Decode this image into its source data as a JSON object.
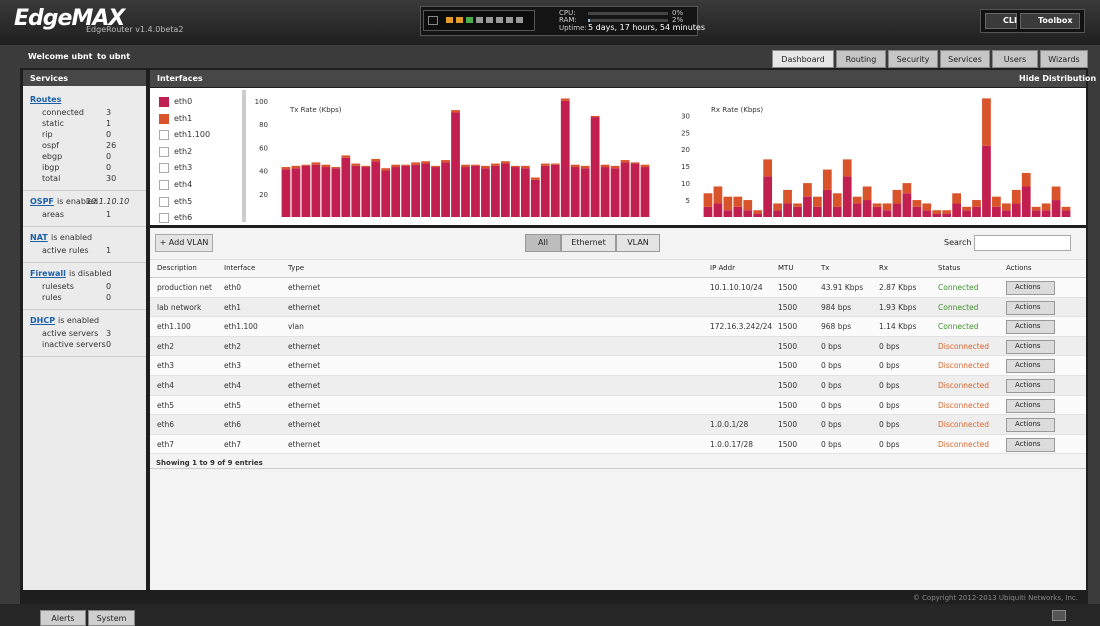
{
  "header": {
    "logo": "EdgeMAX",
    "version": "EdgeRouter v1.4.0beta2",
    "cpu": {
      "caption": "CPU:",
      "value": 0,
      "label": "0%"
    },
    "ram": {
      "caption": "RAM:",
      "value": 2,
      "label": "2%"
    },
    "uptime": {
      "caption": "Uptime:",
      "text": "5 days, 17 hours, 54 minutes"
    },
    "buttons": [
      "CLI",
      "Toolbox"
    ]
  },
  "nav": {
    "welcome": "Welcome ubnt",
    "host": "to ubnt",
    "tabs": [
      "Dashboard",
      "Routing",
      "Security",
      "Services",
      "Users",
      "Wizards"
    ],
    "active_tab": 0
  },
  "sidebar": {
    "title": "Services",
    "sections": [
      {
        "link": "Routes",
        "items": [
          [
            "connected",
            "3"
          ],
          [
            "static",
            "1"
          ],
          [
            "rip",
            "0"
          ],
          [
            "ospf",
            "26"
          ],
          [
            "ebgp",
            "0"
          ],
          [
            "ibgp",
            "0"
          ],
          [
            "total",
            "30"
          ]
        ]
      },
      {
        "link": "OSPF",
        "status": "is enabled",
        "extra": "10.1.10.10",
        "items": [
          [
            "areas",
            "1"
          ]
        ]
      },
      {
        "link": "NAT",
        "status": "is enabled",
        "items": [
          [
            "active rules",
            "1"
          ]
        ]
      },
      {
        "link": "Firewall",
        "status": "is disabled",
        "items": [
          [
            "rulesets",
            "0"
          ],
          [
            "rules",
            "0"
          ]
        ]
      },
      {
        "link": "DHCP",
        "status": "is enabled",
        "items": [
          [
            "active servers",
            "3"
          ],
          [
            "inactive servers",
            "0"
          ]
        ]
      }
    ]
  },
  "interfaces_panel": {
    "title": "Interfaces",
    "toggle": "Hide Distribution",
    "other_interfaces": [
      "eth1.100",
      "eth2",
      "eth3",
      "eth4",
      "eth5",
      "eth6"
    ]
  },
  "chart_data": [
    {
      "type": "bar",
      "stacked": true,
      "title": "Tx Rate (Kbps)",
      "ylim": [
        0,
        105
      ],
      "yticks": [
        20,
        40,
        60,
        80,
        100
      ],
      "series": [
        {
          "name": "eth0",
          "color": "#c11f4f",
          "values": [
            41,
            42,
            44,
            45,
            43,
            42,
            51,
            44,
            43,
            48,
            40,
            43,
            44,
            45,
            46,
            43,
            47,
            90,
            43,
            44,
            42,
            44,
            46,
            43,
            42,
            32,
            44,
            45,
            100,
            43,
            42,
            86,
            43,
            42,
            47,
            46,
            43
          ]
        },
        {
          "name": "eth1",
          "color": "#d9542b",
          "values": [
            2,
            2,
            1,
            2,
            2,
            1,
            2,
            2,
            1,
            2,
            2,
            2,
            1,
            2,
            2,
            1,
            2,
            2,
            2,
            1,
            2,
            2,
            2,
            1,
            2,
            2,
            2,
            1,
            2,
            2,
            2,
            1,
            2,
            2,
            2,
            1,
            2
          ]
        }
      ]
    },
    {
      "type": "bar",
      "stacked": true,
      "title": "Rx Rate (Kbps)",
      "ylim": [
        0,
        36
      ],
      "yticks": [
        5,
        10,
        15,
        20,
        25,
        30
      ],
      "series": [
        {
          "color": "#c11f4f",
          "values": [
            3,
            4,
            2,
            3,
            2,
            1,
            12,
            2,
            4,
            3,
            6,
            3,
            8,
            3,
            12,
            4,
            5,
            3,
            2,
            4,
            7,
            3,
            2,
            1,
            1,
            4,
            2,
            3,
            21,
            3,
            2,
            4,
            9,
            2,
            2,
            5,
            2
          ]
        },
        {
          "color": "#d9542b",
          "values": [
            4,
            5,
            4,
            3,
            3,
            1,
            5,
            2,
            4,
            1,
            4,
            3,
            6,
            4,
            5,
            2,
            4,
            1,
            2,
            4,
            3,
            2,
            2,
            1,
            1,
            3,
            1,
            2,
            14,
            3,
            2,
            4,
            4,
            1,
            2,
            4,
            1
          ]
        }
      ]
    }
  ],
  "toolbar": {
    "add": "+ Add VLAN",
    "filters": [
      "All",
      "Ethernet",
      "VLAN"
    ],
    "active_filter": 0,
    "search": "Search"
  },
  "table": {
    "columns": [
      "Description",
      "Interface",
      "Type",
      "IP Addr",
      "MTU",
      "Tx",
      "Rx",
      "Status",
      "Actions"
    ],
    "rows": [
      [
        "production net",
        "eth0",
        "ethernet",
        "10.1.10.10/24",
        "1500",
        "43.91 Kbps",
        "2.87 Kbps",
        "Connected"
      ],
      [
        "lab network",
        "eth1",
        "ethernet",
        "",
        "1500",
        "984 bps",
        "1.93 Kbps",
        "Connected"
      ],
      [
        "eth1.100",
        "eth1.100",
        "vlan",
        "172.16.3.242/24",
        "1500",
        "968 bps",
        "1.14 Kbps",
        "Connected"
      ],
      [
        "eth2",
        "eth2",
        "ethernet",
        "",
        "1500",
        "0 bps",
        "0 bps",
        "Disconnected"
      ],
      [
        "eth3",
        "eth3",
        "ethernet",
        "",
        "1500",
        "0 bps",
        "0 bps",
        "Disconnected"
      ],
      [
        "eth4",
        "eth4",
        "ethernet",
        "",
        "1500",
        "0 bps",
        "0 bps",
        "Disconnected"
      ],
      [
        "eth5",
        "eth5",
        "ethernet",
        "",
        "1500",
        "0 bps",
        "0 bps",
        "Disconnected"
      ],
      [
        "eth6",
        "eth6",
        "ethernet",
        "1.0.0.1/28",
        "1500",
        "0 bps",
        "0 bps",
        "Disconnected"
      ],
      [
        "eth7",
        "eth7",
        "ethernet",
        "1.0.0.17/28",
        "1500",
        "0 bps",
        "0 bps",
        "Disconnected"
      ]
    ],
    "action_button": "Actions",
    "summary": "Showing 1 to 9 of 9 entries"
  },
  "footer": {
    "copyright": "© Copyright 2012-2013 Ubiquiti Networks, Inc.",
    "tabs": [
      "Alerts",
      "System"
    ]
  }
}
